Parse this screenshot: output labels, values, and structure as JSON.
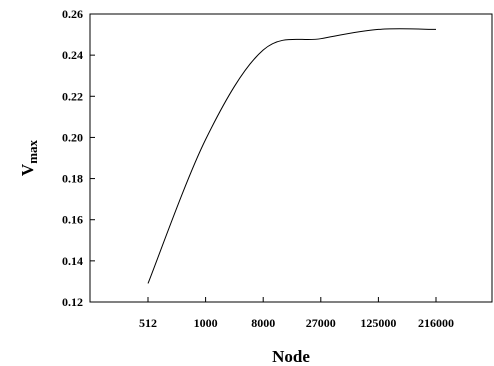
{
  "chart_data": {
    "type": "line",
    "xlabel": "Node",
    "ylabel_main": "V",
    "ylabel_sub": "max",
    "ylim": [
      0.12,
      0.26
    ],
    "yticks": [
      "0.12",
      "0.14",
      "0.16",
      "0.18",
      "0.20",
      "0.22",
      "0.24",
      "0.26"
    ],
    "categories": [
      "512",
      "1000",
      "8000",
      "27000",
      "125000",
      "216000"
    ],
    "grid": false,
    "legend": "none",
    "series": [
      {
        "values": [
          0.129,
          0.199,
          0.2425,
          0.248,
          0.2525,
          0.2525
        ]
      }
    ]
  }
}
